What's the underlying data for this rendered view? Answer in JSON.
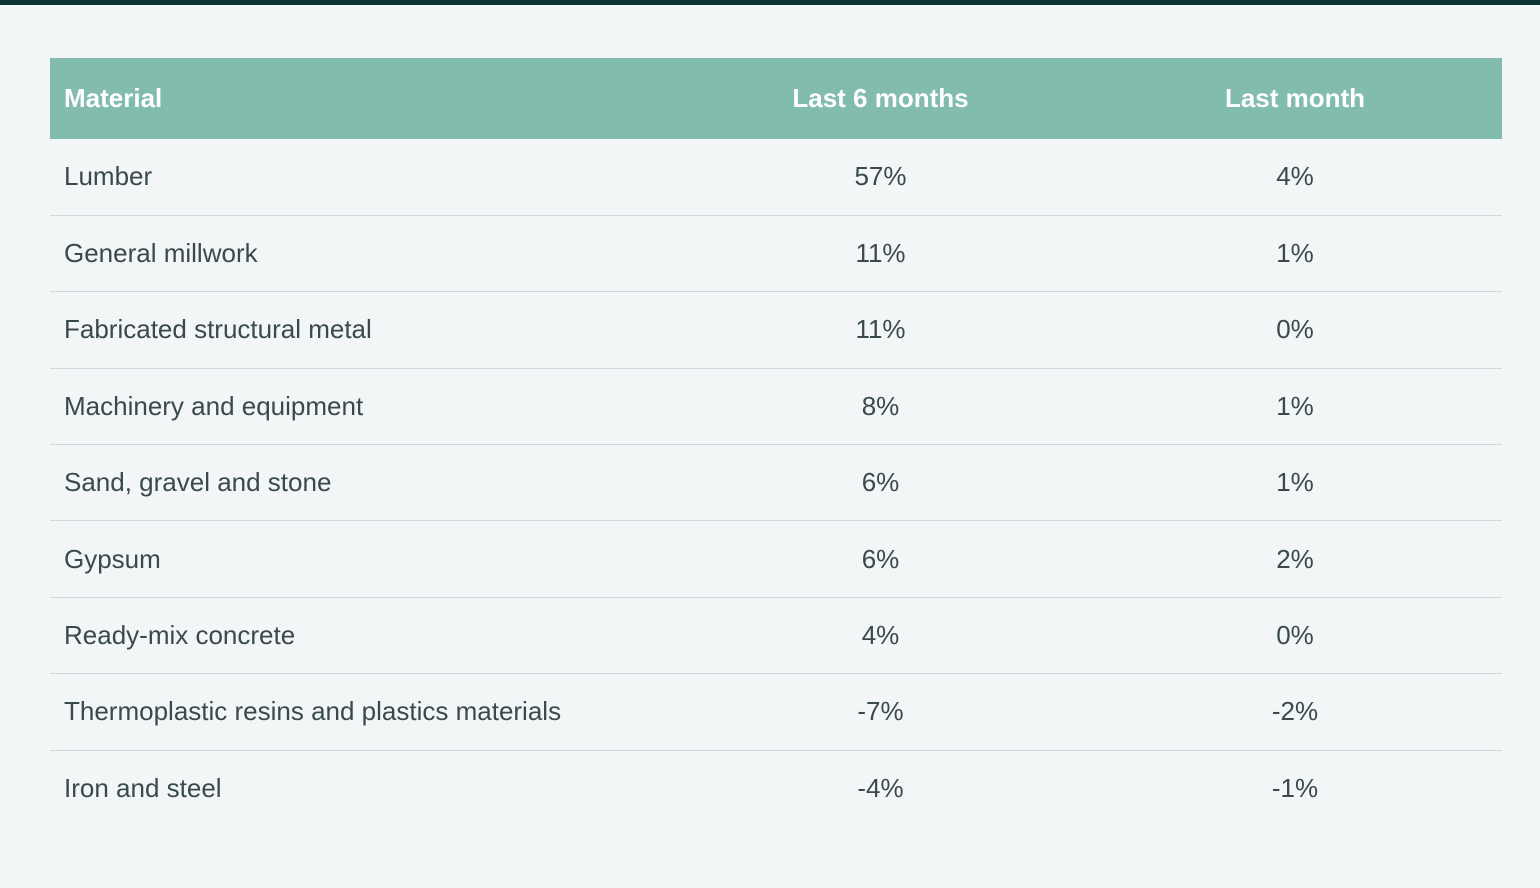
{
  "table": {
    "headers": {
      "material": "Material",
      "last_6_months": "Last 6 months",
      "last_month": "Last month"
    },
    "rows": [
      {
        "material": "Lumber",
        "last_6_months": "57%",
        "last_month": "4%"
      },
      {
        "material": "General millwork",
        "last_6_months": "11%",
        "last_month": "1%"
      },
      {
        "material": "Fabricated structural metal",
        "last_6_months": "11%",
        "last_month": "0%"
      },
      {
        "material": "Machinery and equipment",
        "last_6_months": "8%",
        "last_month": "1%"
      },
      {
        "material": "Sand, gravel and stone",
        "last_6_months": "6%",
        "last_month": "1%"
      },
      {
        "material": "Gypsum",
        "last_6_months": "6%",
        "last_month": "2%"
      },
      {
        "material": "Ready-mix concrete",
        "last_6_months": "4%",
        "last_month": "0%"
      },
      {
        "material": "Thermoplastic resins and plastics materials",
        "last_6_months": "-7%",
        "last_month": "-2%"
      },
      {
        "material": "Iron and steel",
        "last_6_months": "-4%",
        "last_month": "-1%"
      }
    ]
  },
  "colors": {
    "header_background": "#81bcae",
    "page_background": "#f2f6f6",
    "top_rule": "#0f3434",
    "row_divider": "#cfdcdc",
    "body_text": "#3a4a4c"
  }
}
